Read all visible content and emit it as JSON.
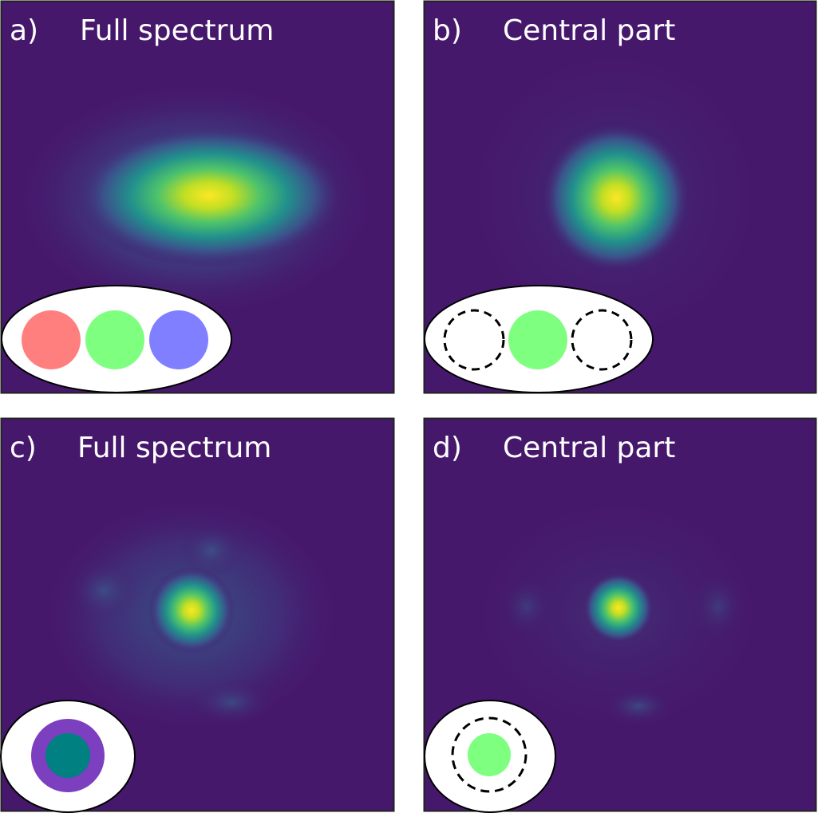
{
  "panels": [
    {
      "label": "a)",
      "title": "Full spectrum"
    },
    {
      "label": "b)",
      "title": "Central part"
    },
    {
      "label": "c)",
      "title": "Full spectrum"
    },
    {
      "label": "d)",
      "title": "Central part"
    }
  ]
}
